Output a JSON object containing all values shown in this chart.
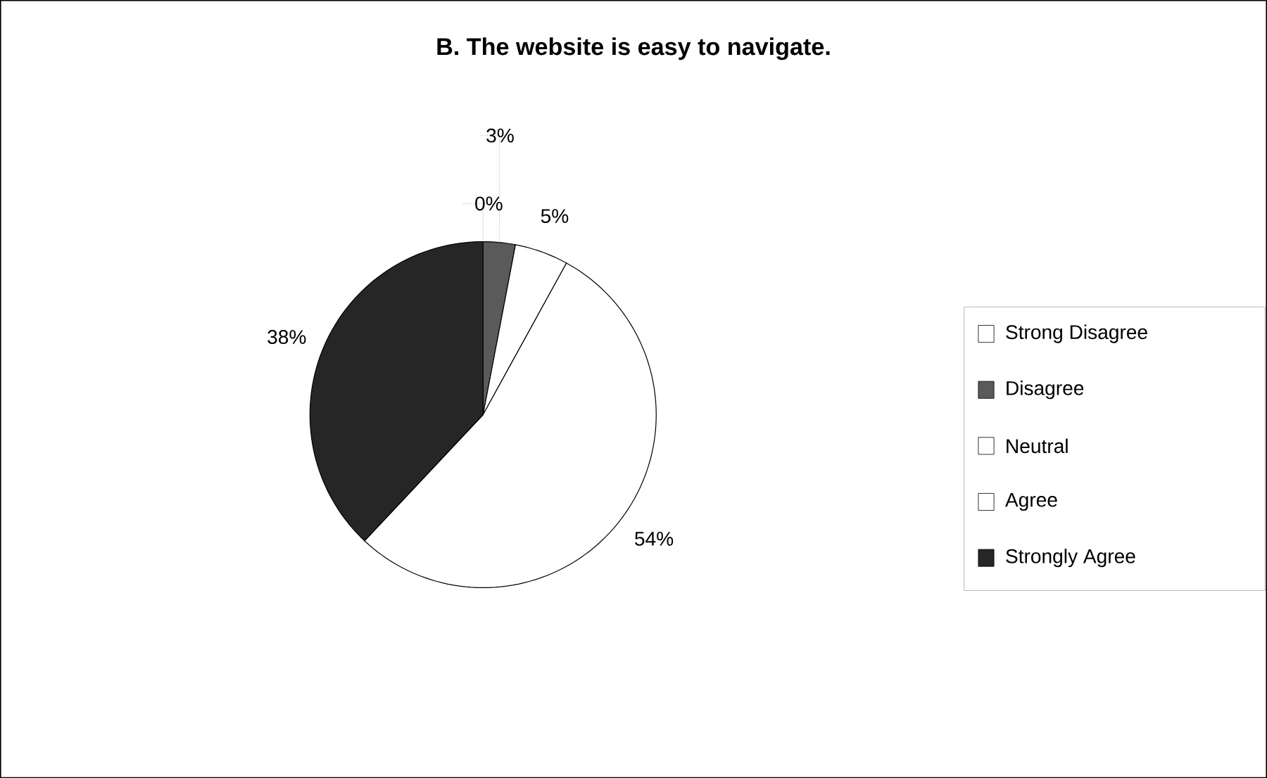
{
  "chart_data": {
    "type": "pie",
    "title": "B. The website is easy to navigate.",
    "categories": [
      "Strong Disagree",
      "Disagree",
      "Neutral",
      "Agree",
      "Strongly Agree"
    ],
    "values": [
      0,
      3,
      5,
      54,
      38
    ],
    "value_labels": [
      "0%",
      "3%",
      "5%",
      "54%",
      "38%"
    ],
    "colors": [
      "#ffffff",
      "#5a5a5a",
      "#ffffff",
      "#ffffff",
      "#262626"
    ],
    "legend": "right"
  }
}
